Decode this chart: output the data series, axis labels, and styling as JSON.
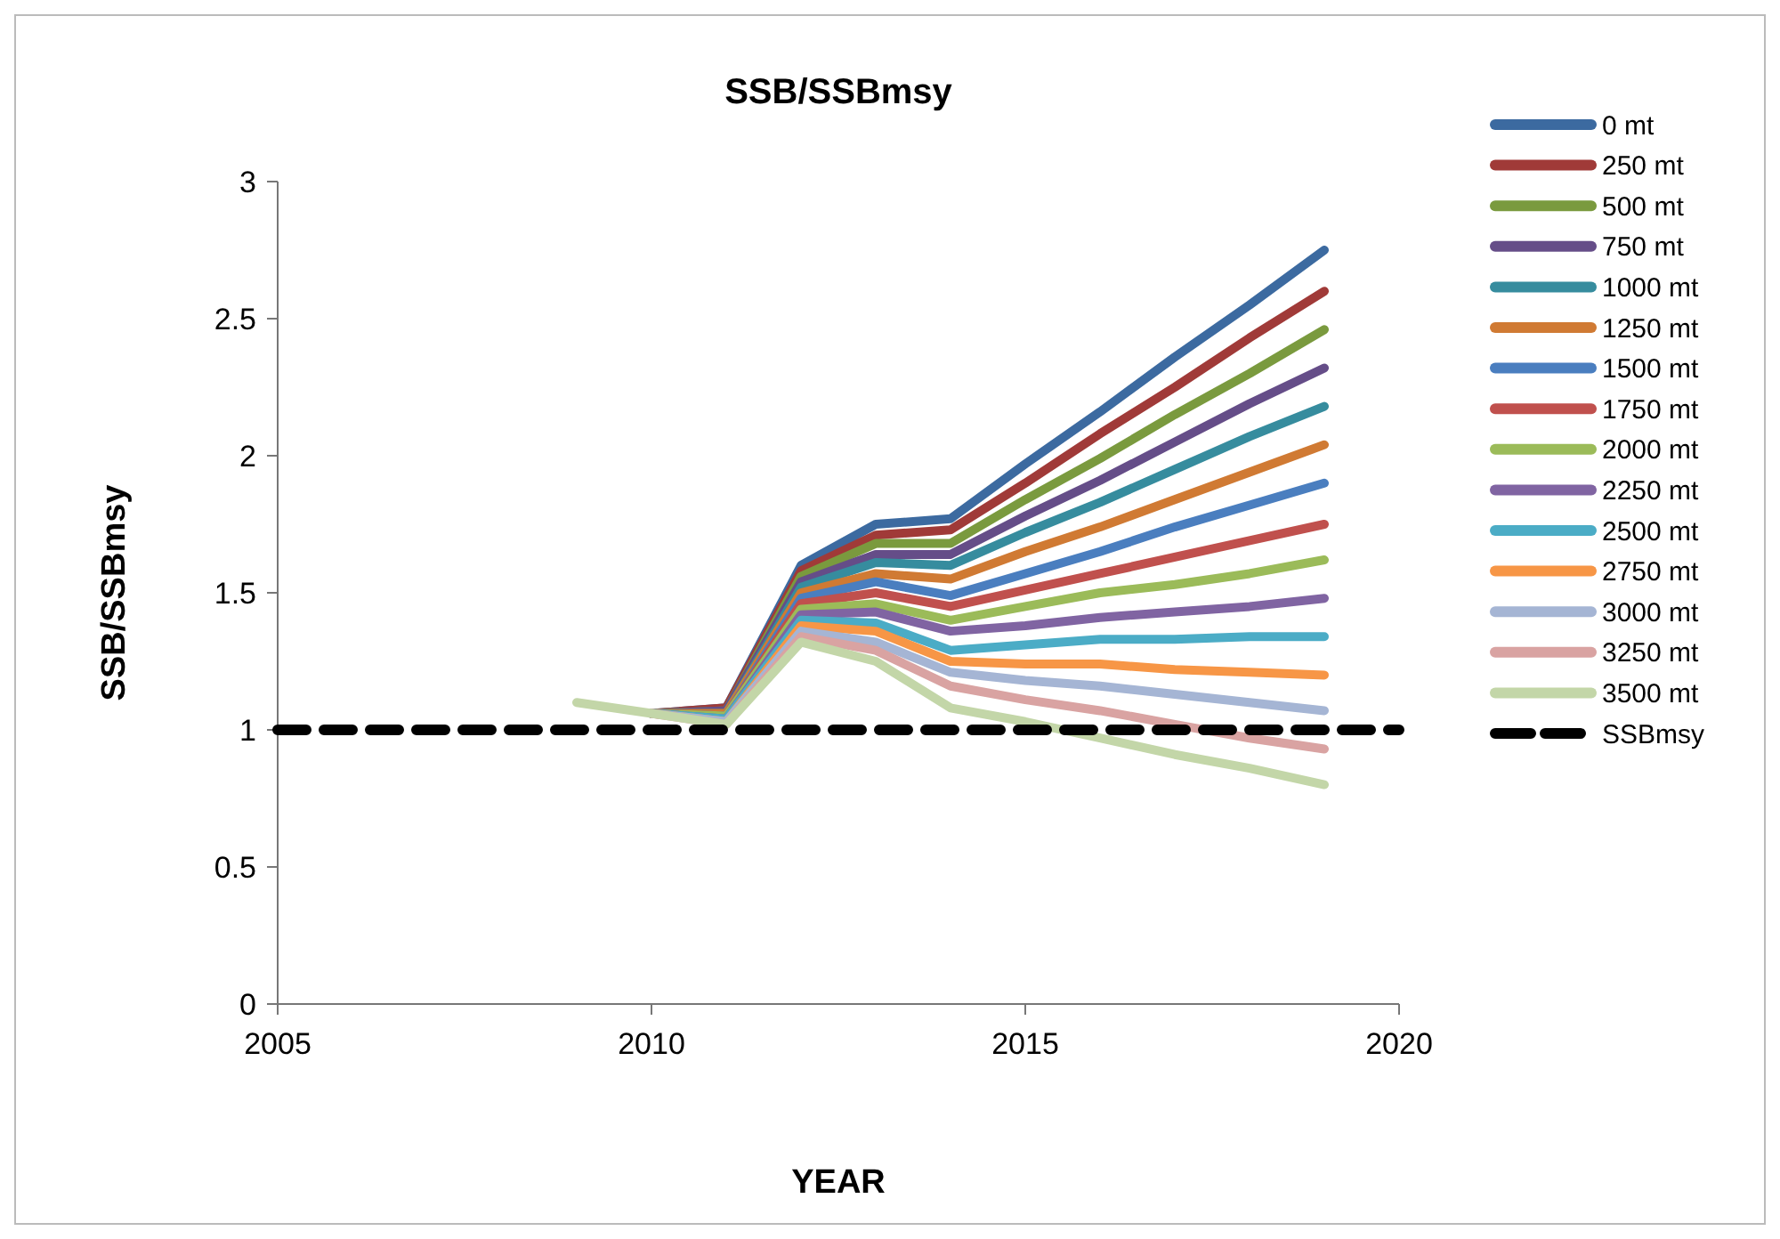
{
  "chart_data": {
    "type": "line",
    "title": "SSB/SSBmsy",
    "xlabel": "YEAR",
    "ylabel": "SSB/SSBmsy",
    "x": [
      2009,
      2010,
      2011,
      2012,
      2013,
      2014,
      2015,
      2016,
      2017,
      2018,
      2019
    ],
    "xlim": [
      2005,
      2020
    ],
    "xticks": [
      2005,
      2010,
      2015,
      2020
    ],
    "ylim": [
      0,
      3
    ],
    "yticks": [
      0,
      0.5,
      1,
      1.5,
      2,
      2.5,
      3
    ],
    "grid": false,
    "legend": "right",
    "marker": "none",
    "series": [
      {
        "name": "0 mt",
        "color": "#3c6aa0",
        "values": [
          null,
          1.06,
          1.08,
          1.6,
          1.75,
          1.77,
          1.97,
          2.16,
          2.36,
          2.55,
          2.75
        ]
      },
      {
        "name": "250 mt",
        "color": "#a03a38",
        "values": [
          null,
          1.06,
          1.08,
          1.58,
          1.71,
          1.73,
          1.9,
          2.08,
          2.25,
          2.43,
          2.6
        ]
      },
      {
        "name": "500 mt",
        "color": "#7a9a3e",
        "values": [
          null,
          1.06,
          1.07,
          1.56,
          1.68,
          1.68,
          1.84,
          1.99,
          2.15,
          2.3,
          2.46
        ]
      },
      {
        "name": "750 mt",
        "color": "#654d88",
        "values": [
          null,
          1.06,
          1.07,
          1.54,
          1.64,
          1.64,
          1.78,
          1.91,
          2.05,
          2.19,
          2.32
        ]
      },
      {
        "name": "1000 mt",
        "color": "#368c9e",
        "values": [
          null,
          1.06,
          1.06,
          1.52,
          1.61,
          1.6,
          1.72,
          1.83,
          1.95,
          2.07,
          2.18
        ]
      },
      {
        "name": "1250 mt",
        "color": "#d07a33",
        "values": [
          null,
          1.06,
          1.06,
          1.5,
          1.57,
          1.55,
          1.65,
          1.74,
          1.84,
          1.94,
          2.04
        ]
      },
      {
        "name": "1500 mt",
        "color": "#4a7ebf",
        "values": [
          null,
          1.06,
          1.05,
          1.48,
          1.54,
          1.49,
          1.57,
          1.65,
          1.74,
          1.82,
          1.9
        ]
      },
      {
        "name": "1750 mt",
        "color": "#c0504d",
        "values": [
          null,
          1.06,
          1.05,
          1.46,
          1.5,
          1.45,
          1.51,
          1.57,
          1.63,
          1.69,
          1.75
        ]
      },
      {
        "name": "2000 mt",
        "color": "#9bbb59",
        "values": [
          null,
          1.06,
          1.05,
          1.44,
          1.46,
          1.4,
          1.45,
          1.5,
          1.53,
          1.57,
          1.62
        ]
      },
      {
        "name": "2250 mt",
        "color": "#8064a2",
        "values": [
          null,
          1.06,
          1.04,
          1.42,
          1.43,
          1.36,
          1.38,
          1.41,
          1.43,
          1.45,
          1.48
        ]
      },
      {
        "name": "2500 mt",
        "color": "#4bacc6",
        "values": [
          null,
          1.06,
          1.04,
          1.4,
          1.39,
          1.29,
          1.31,
          1.33,
          1.33,
          1.34,
          1.34
        ]
      },
      {
        "name": "2750 mt",
        "color": "#f79646",
        "values": [
          null,
          1.06,
          1.03,
          1.38,
          1.36,
          1.25,
          1.24,
          1.24,
          1.22,
          1.21,
          1.2
        ]
      },
      {
        "name": "3000 mt",
        "color": "#a5b5d4",
        "values": [
          null,
          1.06,
          1.03,
          1.36,
          1.32,
          1.21,
          1.18,
          1.16,
          1.13,
          1.1,
          1.07
        ]
      },
      {
        "name": "3250 mt",
        "color": "#d9a3a2",
        "values": [
          null,
          1.06,
          1.02,
          1.34,
          1.29,
          1.16,
          1.11,
          1.07,
          1.02,
          0.97,
          0.93
        ]
      },
      {
        "name": "3500 mt",
        "color": "#c3d6a8",
        "values": [
          1.1,
          1.06,
          1.02,
          1.32,
          1.25,
          1.08,
          1.03,
          0.97,
          0.91,
          0.86,
          0.8
        ]
      },
      {
        "name": "SSBmsy",
        "color": "#000000",
        "x": [
          2005,
          2020
        ],
        "values": [
          1,
          1
        ],
        "line_style": "dashed"
      }
    ]
  }
}
